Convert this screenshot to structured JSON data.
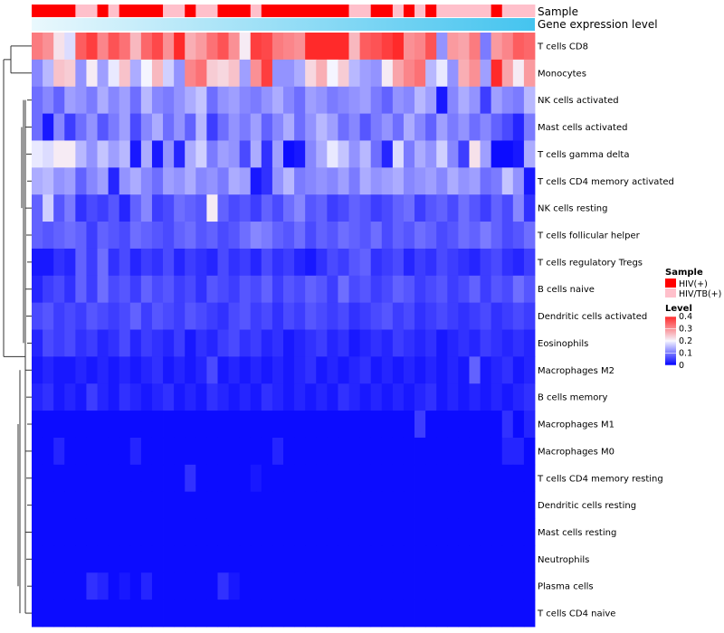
{
  "chart_data": {
    "type": "heatmap",
    "title": "",
    "n_samples": 46,
    "row_labels": [
      "T cells CD8",
      "Monocytes",
      "NK cells activated",
      "Mast cells activated",
      "T cells gamma delta",
      "T cells CD4 memory activated",
      "NK cells resting",
      "T cells follicular helper",
      "T cells regulatory  Tregs",
      "B cells naive",
      "Dendritic cells activated",
      "Eosinophils",
      "Macrophages M2",
      "B cells memory",
      "Macrophages M1",
      "Macrophages M0",
      "T cells CD4 memory resting",
      "Dendritic cells resting",
      "Mast cells resting",
      "Neutrophils",
      "Plasma cells",
      "T cells CD4 naive"
    ],
    "annotation_rows": [
      "Sample",
      "Gene expression level"
    ],
    "sample_groups": [
      "HIV(+)",
      "HIV(+)",
      "HIV(+)",
      "HIV(+)",
      "HIV/TB(+)",
      "HIV/TB(+)",
      "HIV(+)",
      "HIV/TB(+)",
      "HIV(+)",
      "HIV(+)",
      "HIV(+)",
      "HIV(+)",
      "HIV/TB(+)",
      "HIV/TB(+)",
      "HIV(+)",
      "HIV/TB(+)",
      "HIV/TB(+)",
      "HIV(+)",
      "HIV(+)",
      "HIV(+)",
      "HIV/TB(+)",
      "HIV(+)",
      "HIV(+)",
      "HIV(+)",
      "HIV(+)",
      "HIV(+)",
      "HIV(+)",
      "HIV(+)",
      "HIV(+)",
      "HIV/TB(+)",
      "HIV/TB(+)",
      "HIV(+)",
      "HIV(+)",
      "HIV/TB(+)",
      "HIV(+)",
      "HIV/TB(+)",
      "HIV(+)",
      "HIV/TB(+)",
      "HIV/TB(+)",
      "HIV/TB(+)",
      "HIV/TB(+)",
      "HIV/TB(+)",
      "HIV(+)",
      "HIV/TB(+)",
      "HIV/TB(+)",
      "HIV/TB(+)"
    ],
    "expression_gradient": {
      "low": "#eaf8fd",
      "high": "#44c4ef"
    },
    "legend": {
      "sample_title": "Sample",
      "sample_entries": [
        {
          "label": "HIV(+)",
          "color": "#ff0000"
        },
        {
          "label": "HIV/TB(+)",
          "color": "#ffc0cb"
        }
      ],
      "level_title": "Level",
      "level_ticks": [
        "0.4",
        "0.3",
        "0.2",
        "0.1",
        "0"
      ],
      "level_tick_values": [
        0.4,
        0.3,
        0.2,
        0.1,
        0
      ],
      "level_range": [
        0,
        0.4
      ],
      "placement": "right"
    },
    "colorscale": {
      "low": "#0000ff",
      "mid": "#f5f5ff",
      "high": "#ff2a2a",
      "midpoint": 0.2
    },
    "values": [
      [
        0.32,
        0.3,
        0.22,
        0.18,
        0.35,
        0.38,
        0.31,
        0.36,
        0.33,
        0.26,
        0.34,
        0.37,
        0.3,
        0.4,
        0.27,
        0.29,
        0.33,
        0.36,
        0.3,
        0.21,
        0.38,
        0.37,
        0.32,
        0.31,
        0.3,
        0.4,
        0.4,
        0.4,
        0.4,
        0.26,
        0.35,
        0.36,
        0.38,
        0.4,
        0.3,
        0.31,
        0.36,
        0.12,
        0.29,
        0.28,
        0.32,
        0.1,
        0.29,
        0.31,
        0.35,
        0.34
      ],
      [
        0.11,
        0.15,
        0.25,
        0.24,
        0.12,
        0.21,
        0.13,
        0.19,
        0.25,
        0.14,
        0.2,
        0.26,
        0.17,
        0.12,
        0.31,
        0.33,
        0.24,
        0.23,
        0.25,
        0.13,
        0.3,
        0.38,
        0.12,
        0.12,
        0.14,
        0.23,
        0.27,
        0.2,
        0.24,
        0.15,
        0.13,
        0.12,
        0.21,
        0.28,
        0.31,
        0.33,
        0.15,
        0.19,
        0.12,
        0.27,
        0.3,
        0.13,
        0.4,
        0.28,
        0.21,
        0.29
      ],
      [
        0.09,
        0.11,
        0.08,
        0.13,
        0.12,
        0.1,
        0.14,
        0.11,
        0.13,
        0.09,
        0.15,
        0.11,
        0.1,
        0.12,
        0.14,
        0.16,
        0.09,
        0.12,
        0.13,
        0.11,
        0.1,
        0.12,
        0.14,
        0.11,
        0.09,
        0.13,
        0.12,
        0.1,
        0.11,
        0.12,
        0.13,
        0.1,
        0.08,
        0.12,
        0.11,
        0.15,
        0.13,
        0.02,
        0.11,
        0.14,
        0.12,
        0.05,
        0.13,
        0.11,
        0.1,
        0.15
      ],
      [
        0.09,
        0.02,
        0.11,
        0.05,
        0.09,
        0.12,
        0.07,
        0.1,
        0.13,
        0.06,
        0.11,
        0.14,
        0.09,
        0.12,
        0.08,
        0.15,
        0.05,
        0.09,
        0.12,
        0.1,
        0.13,
        0.08,
        0.11,
        0.14,
        0.09,
        0.12,
        0.15,
        0.13,
        0.09,
        0.11,
        0.07,
        0.1,
        0.12,
        0.09,
        0.14,
        0.11,
        0.08,
        0.13,
        0.1,
        0.12,
        0.09,
        0.11,
        0.08,
        0.06,
        0.03,
        0.1
      ],
      [
        0.19,
        0.18,
        0.21,
        0.21,
        0.15,
        0.12,
        0.16,
        0.13,
        0.15,
        0.02,
        0.14,
        0.02,
        0.12,
        0.03,
        0.14,
        0.17,
        0.1,
        0.13,
        0.12,
        0.06,
        0.14,
        0.04,
        0.13,
        0.01,
        0.02,
        0.11,
        0.14,
        0.19,
        0.16,
        0.12,
        0.15,
        0.09,
        0.03,
        0.18,
        0.1,
        0.14,
        0.12,
        0.17,
        0.11,
        0.05,
        0.22,
        0.13,
        0.01,
        0.01,
        0.02,
        0.14
      ],
      [
        0.14,
        0.15,
        0.12,
        0.13,
        0.08,
        0.11,
        0.13,
        0.03,
        0.12,
        0.14,
        0.11,
        0.09,
        0.13,
        0.12,
        0.14,
        0.11,
        0.12,
        0.1,
        0.14,
        0.13,
        0.02,
        0.04,
        0.12,
        0.15,
        0.1,
        0.11,
        0.12,
        0.11,
        0.13,
        0.1,
        0.14,
        0.12,
        0.13,
        0.14,
        0.11,
        0.12,
        0.13,
        0.11,
        0.14,
        0.12,
        0.13,
        0.09,
        0.1,
        0.16,
        0.12,
        0.02
      ],
      [
        0.08,
        0.17,
        0.07,
        0.1,
        0.04,
        0.06,
        0.05,
        0.07,
        0.03,
        0.08,
        0.11,
        0.05,
        0.06,
        0.09,
        0.08,
        0.07,
        0.21,
        0.08,
        0.06,
        0.07,
        0.05,
        0.08,
        0.06,
        0.09,
        0.11,
        0.07,
        0.08,
        0.05,
        0.06,
        0.08,
        0.07,
        0.05,
        0.06,
        0.08,
        0.09,
        0.05,
        0.07,
        0.08,
        0.06,
        0.09,
        0.07,
        0.05,
        0.08,
        0.06,
        0.11,
        0.04
      ],
      [
        0.08,
        0.07,
        0.08,
        0.09,
        0.08,
        0.05,
        0.08,
        0.07,
        0.06,
        0.09,
        0.08,
        0.07,
        0.06,
        0.08,
        0.09,
        0.07,
        0.08,
        0.06,
        0.07,
        0.09,
        0.11,
        0.1,
        0.08,
        0.07,
        0.09,
        0.06,
        0.08,
        0.07,
        0.09,
        0.08,
        0.07,
        0.09,
        0.06,
        0.08,
        0.07,
        0.09,
        0.08,
        0.06,
        0.07,
        0.09,
        0.08,
        0.1,
        0.08,
        0.06,
        0.07,
        0.09
      ],
      [
        0.02,
        0.02,
        0.04,
        0.03,
        0.08,
        0.05,
        0.09,
        0.04,
        0.06,
        0.03,
        0.05,
        0.04,
        0.06,
        0.03,
        0.05,
        0.04,
        0.03,
        0.06,
        0.04,
        0.05,
        0.03,
        0.06,
        0.04,
        0.05,
        0.03,
        0.02,
        0.04,
        0.06,
        0.05,
        0.07,
        0.08,
        0.04,
        0.05,
        0.06,
        0.03,
        0.05,
        0.04,
        0.06,
        0.05,
        0.04,
        0.03,
        0.05,
        0.06,
        0.04,
        0.03,
        0.05
      ],
      [
        0.03,
        0.05,
        0.06,
        0.04,
        0.08,
        0.05,
        0.09,
        0.06,
        0.07,
        0.05,
        0.08,
        0.06,
        0.07,
        0.05,
        0.06,
        0.04,
        0.07,
        0.06,
        0.05,
        0.07,
        0.06,
        0.08,
        0.05,
        0.07,
        0.06,
        0.08,
        0.07,
        0.05,
        0.09,
        0.06,
        0.07,
        0.05,
        0.06,
        0.08,
        0.07,
        0.05,
        0.06,
        0.07,
        0.05,
        0.06,
        0.08,
        0.05,
        0.07,
        0.06,
        0.09,
        0.07
      ],
      [
        0.06,
        0.07,
        0.05,
        0.06,
        0.05,
        0.07,
        0.06,
        0.05,
        0.06,
        0.08,
        0.05,
        0.07,
        0.06,
        0.05,
        0.07,
        0.06,
        0.05,
        0.04,
        0.06,
        0.07,
        0.05,
        0.06,
        0.04,
        0.06,
        0.05,
        0.07,
        0.06,
        0.05,
        0.06,
        0.04,
        0.05,
        0.06,
        0.07,
        0.05,
        0.06,
        0.04,
        0.05,
        0.06,
        0.05,
        0.04,
        0.05,
        0.06,
        0.04,
        0.05,
        0.06,
        0.05
      ],
      [
        0.03,
        0.06,
        0.05,
        0.06,
        0.04,
        0.05,
        0.03,
        0.04,
        0.06,
        0.03,
        0.05,
        0.04,
        0.03,
        0.05,
        0.02,
        0.04,
        0.03,
        0.05,
        0.06,
        0.04,
        0.05,
        0.03,
        0.04,
        0.02,
        0.03,
        0.04,
        0.05,
        0.03,
        0.04,
        0.02,
        0.03,
        0.04,
        0.03,
        0.05,
        0.04,
        0.03,
        0.04,
        0.02,
        0.03,
        0.04,
        0.03,
        0.05,
        0.04,
        0.03,
        0.04,
        0.03
      ],
      [
        0.02,
        0.03,
        0.02,
        0.02,
        0.03,
        0.02,
        0.03,
        0.02,
        0.03,
        0.02,
        0.03,
        0.04,
        0.02,
        0.03,
        0.02,
        0.03,
        0.06,
        0.02,
        0.03,
        0.02,
        0.03,
        0.02,
        0.03,
        0.02,
        0.03,
        0.04,
        0.02,
        0.03,
        0.02,
        0.03,
        0.04,
        0.02,
        0.03,
        0.02,
        0.03,
        0.02,
        0.03,
        0.02,
        0.03,
        0.02,
        0.08,
        0.02,
        0.03,
        0.04,
        0.02,
        0.03
      ],
      [
        0.03,
        0.04,
        0.02,
        0.03,
        0.02,
        0.05,
        0.03,
        0.02,
        0.04,
        0.03,
        0.02,
        0.03,
        0.04,
        0.02,
        0.03,
        0.02,
        0.04,
        0.03,
        0.02,
        0.03,
        0.02,
        0.04,
        0.03,
        0.02,
        0.03,
        0.02,
        0.03,
        0.02,
        0.04,
        0.03,
        0.02,
        0.03,
        0.02,
        0.03,
        0.02,
        0.03,
        0.04,
        0.02,
        0.03,
        0.02,
        0.03,
        0.02,
        0.03,
        0.02,
        0.03,
        0.04
      ],
      [
        0.01,
        0.01,
        0.01,
        0.01,
        0.01,
        0.01,
        0.01,
        0.01,
        0.01,
        0.01,
        0.01,
        0.01,
        0.01,
        0.01,
        0.01,
        0.01,
        0.01,
        0.01,
        0.01,
        0.01,
        0.01,
        0.01,
        0.01,
        0.01,
        0.01,
        0.01,
        0.01,
        0.01,
        0.01,
        0.01,
        0.01,
        0.01,
        0.01,
        0.01,
        0.01,
        0.05,
        0.01,
        0.01,
        0.01,
        0.01,
        0.01,
        0.01,
        0.01,
        0.04,
        0.01,
        0.03
      ],
      [
        0.01,
        0.01,
        0.03,
        0.01,
        0.01,
        0.01,
        0.01,
        0.01,
        0.01,
        0.03,
        0.01,
        0.01,
        0.01,
        0.01,
        0.01,
        0.01,
        0.01,
        0.01,
        0.01,
        0.01,
        0.01,
        0.01,
        0.03,
        0.01,
        0.01,
        0.01,
        0.01,
        0.01,
        0.01,
        0.01,
        0.01,
        0.01,
        0.01,
        0.01,
        0.01,
        0.01,
        0.01,
        0.01,
        0.01,
        0.01,
        0.01,
        0.01,
        0.01,
        0.03,
        0.03,
        0.01
      ],
      [
        0.01,
        0.01,
        0.01,
        0.01,
        0.01,
        0.01,
        0.01,
        0.01,
        0.01,
        0.01,
        0.01,
        0.01,
        0.01,
        0.01,
        0.04,
        0.01,
        0.01,
        0.01,
        0.01,
        0.01,
        0.02,
        0.01,
        0.01,
        0.01,
        0.01,
        0.01,
        0.01,
        0.01,
        0.01,
        0.01,
        0.01,
        0.01,
        0.01,
        0.01,
        0.01,
        0.01,
        0.01,
        0.01,
        0.01,
        0.01,
        0.01,
        0.01,
        0.01,
        0.01,
        0.01,
        0.01
      ],
      [
        0.01,
        0.01,
        0.01,
        0.01,
        0.01,
        0.01,
        0.01,
        0.01,
        0.01,
        0.01,
        0.01,
        0.01,
        0.01,
        0.01,
        0.01,
        0.01,
        0.01,
        0.01,
        0.01,
        0.01,
        0.01,
        0.01,
        0.01,
        0.01,
        0.01,
        0.01,
        0.01,
        0.01,
        0.01,
        0.01,
        0.01,
        0.01,
        0.01,
        0.01,
        0.01,
        0.01,
        0.01,
        0.01,
        0.01,
        0.01,
        0.01,
        0.01,
        0.01,
        0.01,
        0.01,
        0.01
      ],
      [
        0.01,
        0.01,
        0.01,
        0.01,
        0.01,
        0.01,
        0.01,
        0.01,
        0.01,
        0.01,
        0.01,
        0.01,
        0.01,
        0.01,
        0.01,
        0.01,
        0.01,
        0.01,
        0.01,
        0.01,
        0.01,
        0.01,
        0.01,
        0.01,
        0.01,
        0.01,
        0.01,
        0.01,
        0.01,
        0.01,
        0.01,
        0.01,
        0.01,
        0.01,
        0.01,
        0.01,
        0.01,
        0.01,
        0.01,
        0.01,
        0.01,
        0.01,
        0.01,
        0.01,
        0.01,
        0.01
      ],
      [
        0.01,
        0.01,
        0.01,
        0.01,
        0.01,
        0.01,
        0.01,
        0.01,
        0.01,
        0.01,
        0.01,
        0.01,
        0.01,
        0.01,
        0.01,
        0.01,
        0.01,
        0.01,
        0.01,
        0.01,
        0.01,
        0.01,
        0.01,
        0.01,
        0.01,
        0.01,
        0.01,
        0.01,
        0.01,
        0.01,
        0.01,
        0.01,
        0.01,
        0.01,
        0.01,
        0.01,
        0.01,
        0.01,
        0.01,
        0.01,
        0.01,
        0.01,
        0.01,
        0.01,
        0.01,
        0.01
      ],
      [
        0.01,
        0.01,
        0.01,
        0.01,
        0.01,
        0.04,
        0.03,
        0.01,
        0.02,
        0.01,
        0.03,
        0.01,
        0.01,
        0.01,
        0.01,
        0.01,
        0.01,
        0.04,
        0.02,
        0.01,
        0.01,
        0.01,
        0.01,
        0.01,
        0.01,
        0.01,
        0.01,
        0.01,
        0.01,
        0.01,
        0.01,
        0.01,
        0.01,
        0.01,
        0.01,
        0.01,
        0.01,
        0.01,
        0.01,
        0.01,
        0.01,
        0.01,
        0.01,
        0.01,
        0.01,
        0.01
      ],
      [
        0.01,
        0.01,
        0.01,
        0.01,
        0.01,
        0.01,
        0.01,
        0.01,
        0.01,
        0.01,
        0.01,
        0.01,
        0.01,
        0.01,
        0.01,
        0.01,
        0.01,
        0.01,
        0.01,
        0.01,
        0.01,
        0.01,
        0.01,
        0.01,
        0.01,
        0.01,
        0.01,
        0.01,
        0.01,
        0.01,
        0.01,
        0.01,
        0.01,
        0.01,
        0.01,
        0.01,
        0.01,
        0.01,
        0.01,
        0.01,
        0.01,
        0.01,
        0.01,
        0.01,
        0.01,
        0.01
      ]
    ]
  }
}
